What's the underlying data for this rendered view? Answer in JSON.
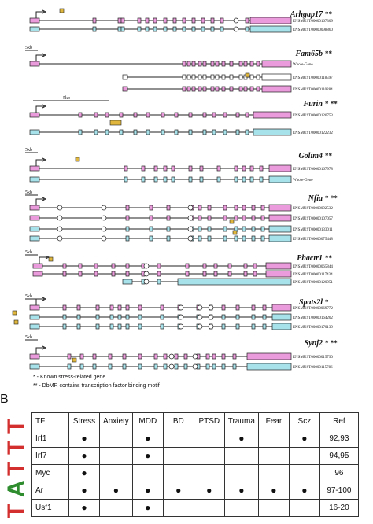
{
  "panelA": {
    "genes": [
      {
        "name": "Arhgap17",
        "stars": "**",
        "scale": "",
        "tracks": [
          {
            "label": "ENSMUST00000167309",
            "color": "pink"
          },
          {
            "label": "ENSMUST00000098860",
            "color": "cyan"
          }
        ]
      },
      {
        "name": "Fam65b",
        "stars": "**",
        "scale": "5kb",
        "tracks": [
          {
            "label": "Whole-Gene",
            "color": "pink"
          },
          {
            "label": "ENSMUST00000118597",
            "color": "none"
          },
          {
            "label": "ENSMUST00000110284",
            "color": "pink"
          }
        ]
      },
      {
        "name": "Furin",
        "stars": "* **",
        "scale": "5kb",
        "tracks": [
          {
            "label": "ENSMUST00000120753",
            "color": "pink"
          },
          {
            "label": "ENSMUST00000122232",
            "color": "cyan"
          }
        ]
      },
      {
        "name": "Golim4",
        "stars": "**",
        "scale": "5kb",
        "tracks": [
          {
            "label": "ENSMUST00000167978",
            "color": "pink"
          },
          {
            "label": "Whole-Gene",
            "color": "cyan"
          }
        ]
      },
      {
        "name": "Nfia",
        "stars": "* **",
        "scale": "5kb",
        "tracks": [
          {
            "label": "ENSMUST00000092532",
            "color": "pink"
          },
          {
            "label": "ENSMUST00000107057",
            "color": "pink"
          },
          {
            "label": "ENSMUST00000133011",
            "color": "cyan"
          },
          {
            "label": "ENSMUST00000075448",
            "color": "cyan"
          }
        ]
      },
      {
        "name": "Phactr1",
        "stars": "**",
        "scale": "5kb",
        "tracks": [
          {
            "label": "ENSMUST00000065844",
            "color": "pink"
          },
          {
            "label": "ENSMUST00000117434",
            "color": "pink"
          },
          {
            "label": "ENSMUST00000120951",
            "color": "cyan"
          }
        ]
      },
      {
        "name": "Spats2l",
        "stars": "*",
        "scale": "5kb",
        "tracks": [
          {
            "label": "ENSMUST00000069772",
            "color": "pink"
          },
          {
            "label": "ENSMUST00000164202",
            "color": "cyan"
          },
          {
            "label": "ENSMUST00000170139",
            "color": "cyan"
          }
        ]
      },
      {
        "name": "Synj2",
        "stars": "* **",
        "scale": "5kb",
        "tracks": [
          {
            "label": "ENSMUST00000015790",
            "color": "pink"
          },
          {
            "label": "ENSMUST00000115786",
            "color": "cyan"
          }
        ]
      }
    ],
    "legend": {
      "line1": "* - Known stress-related gene",
      "line2": "** - DbMR contains transcription factor binding motif"
    },
    "colors": {
      "pink": "#e99bdc",
      "cyan": "#a7e2ea",
      "motif": "#e0b63d",
      "line": "#222222"
    }
  },
  "panelB": {
    "label": "B",
    "headers": [
      "TF",
      "Stress",
      "Anxiety",
      "MDD",
      "BD",
      "PTSD",
      "Trauma",
      "Fear",
      "Scz",
      "Ref"
    ],
    "rows": [
      {
        "tf": "Irf1",
        "marks": [
          true,
          false,
          true,
          false,
          false,
          true,
          false,
          true
        ],
        "ref": "92,93"
      },
      {
        "tf": "Irf7",
        "marks": [
          true,
          false,
          true,
          false,
          false,
          false,
          false,
          false
        ],
        "ref": "94,95"
      },
      {
        "tf": "Myc",
        "marks": [
          true,
          false,
          false,
          false,
          false,
          false,
          false,
          false
        ],
        "ref": "96"
      },
      {
        "tf": "Ar",
        "marks": [
          true,
          true,
          true,
          true,
          true,
          true,
          true,
          true
        ],
        "ref": "97-100"
      },
      {
        "tf": "Usf1",
        "marks": [
          true,
          false,
          true,
          false,
          false,
          false,
          false,
          false
        ],
        "ref": "16-20"
      }
    ],
    "dot": "●",
    "logo_letters": "TATTT"
  }
}
